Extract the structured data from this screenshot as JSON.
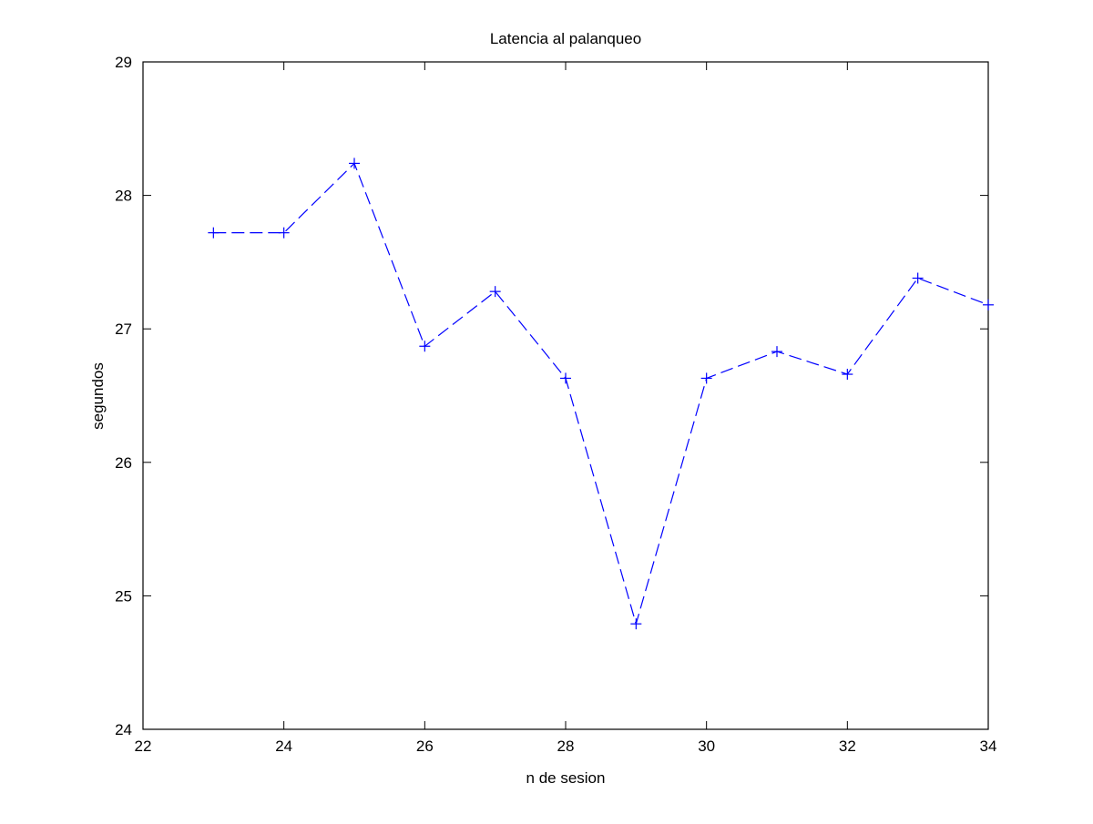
{
  "chart_data": {
    "type": "line",
    "title": "Latencia al palanqueo",
    "xlabel": "n de sesion",
    "ylabel": "segundos",
    "xlim": [
      22,
      34
    ],
    "ylim": [
      24,
      29
    ],
    "xticks": [
      22,
      24,
      26,
      28,
      30,
      32,
      34
    ],
    "yticks": [
      24,
      25,
      26,
      27,
      28,
      29
    ],
    "grid": false,
    "series": [
      {
        "name": "latencia",
        "color": "#0000ff",
        "line_style": "dashed",
        "marker": "plus",
        "x": [
          23,
          24,
          25,
          26,
          27,
          28,
          29,
          30,
          31,
          32,
          33,
          34
        ],
        "y": [
          27.72,
          27.72,
          28.24,
          26.87,
          27.28,
          26.63,
          24.79,
          26.63,
          26.83,
          26.66,
          27.38,
          27.18
        ]
      }
    ]
  }
}
